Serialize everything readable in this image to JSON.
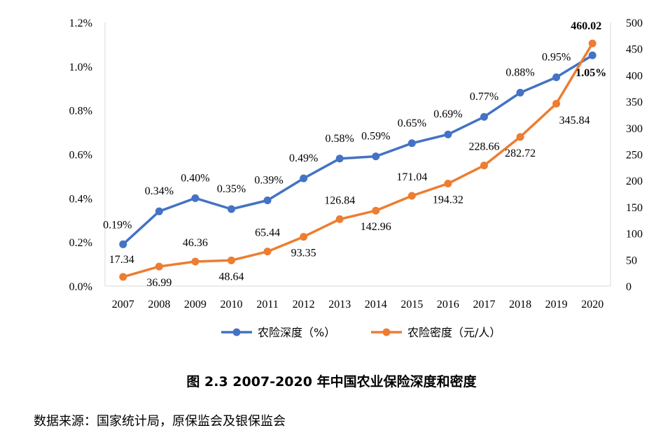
{
  "chart_data": {
    "type": "line",
    "categories": [
      "2007",
      "2008",
      "2009",
      "2010",
      "2011",
      "2012",
      "2013",
      "2014",
      "2015",
      "2016",
      "2017",
      "2018",
      "2019",
      "2020"
    ],
    "series": [
      {
        "name": "农险深度（%）",
        "axis": "left",
        "color": "#4472C4",
        "values": [
          0.19,
          0.34,
          0.4,
          0.35,
          0.39,
          0.49,
          0.58,
          0.59,
          0.65,
          0.69,
          0.77,
          0.88,
          0.95,
          1.05
        ],
        "labels": [
          "0.19%",
          "0.34%",
          "0.40%",
          "0.35%",
          "0.39%",
          "0.49%",
          "0.58%",
          "0.59%",
          "0.65%",
          "0.69%",
          "0.77%",
          "0.88%",
          "0.95%",
          "1.05%"
        ]
      },
      {
        "name": "农险密度（元/人）",
        "axis": "right",
        "color": "#ED7D31",
        "values": [
          17.34,
          36.99,
          46.36,
          48.64,
          65.44,
          93.35,
          126.84,
          142.96,
          171.04,
          194.32,
          228.66,
          282.72,
          345.84,
          460.02
        ],
        "labels": [
          "17.34",
          "36.99",
          "46.36",
          "48.64",
          "65.44",
          "93.35",
          "126.84",
          "142.96",
          "171.04",
          "194.32",
          "228.66",
          "282.72",
          "345.84",
          "460.02"
        ]
      }
    ],
    "y_left": {
      "ylim": [
        0,
        1.2
      ],
      "ticks": [
        "0.0%",
        "0.2%",
        "0.4%",
        "0.6%",
        "0.8%",
        "1.0%",
        "1.2%"
      ]
    },
    "y_right": {
      "ylim": [
        0,
        500
      ],
      "ticks": [
        "0",
        "50",
        "100",
        "150",
        "200",
        "250",
        "300",
        "350",
        "400",
        "450",
        "500"
      ]
    },
    "legend_position": "bottom"
  },
  "caption": "图 2.3 2007-2020 年中国农业保险深度和密度",
  "source": "数据来源：国家统计局，原保监会及银保监会"
}
